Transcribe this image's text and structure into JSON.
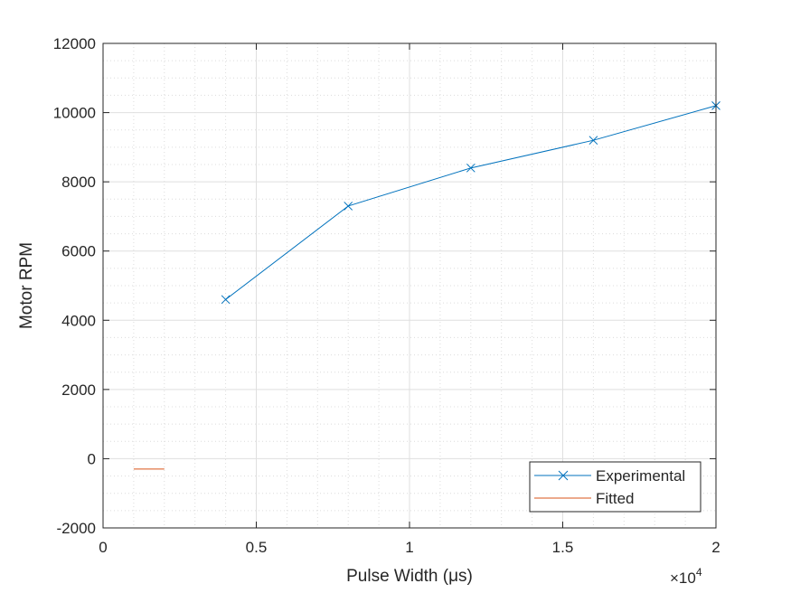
{
  "chart_data": {
    "type": "line",
    "title": "",
    "xlabel": "Pulse Width (μs)",
    "ylabel": "Motor RPM",
    "xlim": [
      0,
      20000
    ],
    "ylim": [
      -2000,
      12000
    ],
    "x_exponent_label": "×10",
    "x_exponent_power": "4",
    "x_ticks": [
      0,
      5000,
      10000,
      15000,
      20000
    ],
    "x_tick_labels": [
      "0",
      "0.5",
      "1",
      "1.5",
      "2"
    ],
    "y_ticks": [
      -2000,
      0,
      2000,
      4000,
      6000,
      8000,
      10000,
      12000
    ],
    "y_tick_labels": [
      "-2000",
      "0",
      "2000",
      "4000",
      "6000",
      "8000",
      "10000",
      "12000"
    ],
    "grid": true,
    "minor_grid": true,
    "legend_position": "bottom-right",
    "series": [
      {
        "name": "Experimental",
        "color": "#0072BD",
        "marker": "x",
        "x": [
          4000,
          8000,
          12000,
          16000,
          20000
        ],
        "y": [
          4600,
          7300,
          8400,
          9200,
          10200
        ]
      },
      {
        "name": "Fitted",
        "color": "#D95319",
        "marker": "none",
        "x": [
          1000,
          2000
        ],
        "y": [
          -300,
          -300
        ]
      }
    ]
  }
}
